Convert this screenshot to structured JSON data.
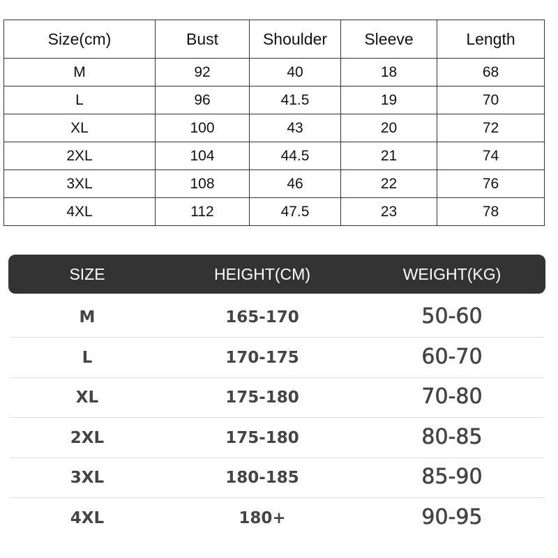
{
  "measurements": {
    "headers": [
      "Size(cm)",
      "Bust",
      "Shoulder",
      "Sleeve",
      "Length"
    ],
    "rows": [
      [
        "M",
        "92",
        "40",
        "18",
        "68"
      ],
      [
        "L",
        "96",
        "41.5",
        "19",
        "70"
      ],
      [
        "XL",
        "100",
        "43",
        "20",
        "72"
      ],
      [
        "2XL",
        "104",
        "44.5",
        "21",
        "74"
      ],
      [
        "3XL",
        "108",
        "46",
        "22",
        "76"
      ],
      [
        "4XL",
        "112",
        "47.5",
        "23",
        "78"
      ]
    ]
  },
  "fit_guide": {
    "headers": [
      "SIZE",
      "HEIGHT(CM)",
      "WEIGHT(KG)"
    ],
    "header_bg": "#333333",
    "rows": [
      [
        "M",
        "165-170",
        "50-60"
      ],
      [
        "L",
        "170-175",
        "60-70"
      ],
      [
        "XL",
        "175-180",
        "70-80"
      ],
      [
        "2XL",
        "175-180",
        "80-85"
      ],
      [
        "3XL",
        "180-185",
        "85-90"
      ],
      [
        "4XL",
        "180+",
        "90-95"
      ]
    ]
  }
}
